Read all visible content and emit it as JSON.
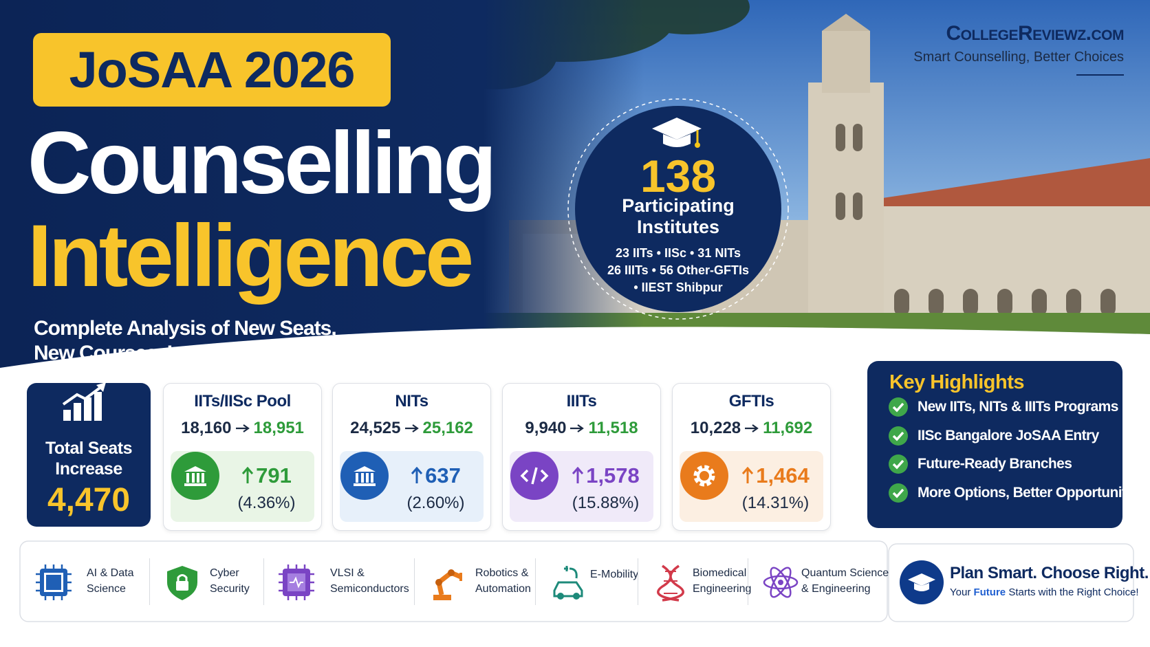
{
  "header": {
    "badge": "JoSAA 2026",
    "title_line1": "Counselling",
    "title_line2": "Intelligence",
    "subtitle_line1": "Complete Analysis of New Seats,",
    "subtitle_line2": "New Courses, Institutes & Strategy"
  },
  "brand": {
    "name": "CollegeReviewz.com",
    "tagline": "Smart Counselling, Better Choices"
  },
  "institutes": {
    "count": "138",
    "label_line1": "Participating",
    "label_line2": "Institutes",
    "breakdown": [
      "23 IITs • IISc • 31 NITs",
      "26 IIITs • 56 Other-GFTIs",
      "• IIEST Shibpur"
    ]
  },
  "total": {
    "label_line1": "Total Seats",
    "label_line2": "Increase",
    "value": "4,470"
  },
  "pools": [
    {
      "name": "IITs/IISc Pool",
      "from": "18,160",
      "to": "18,951",
      "increase": "791",
      "percent": "(4.36%)"
    },
    {
      "name": "NITs",
      "from": "24,525",
      "to": "25,162",
      "increase": "637",
      "percent": "(2.60%)"
    },
    {
      "name": "IIITs",
      "from": "9,940",
      "to": "11,518",
      "increase": "1,578",
      "percent": "(15.88%)"
    },
    {
      "name": "GFTIs",
      "from": "10,228",
      "to": "11,692",
      "increase": "1,464",
      "percent": "(14.31%)"
    }
  ],
  "highlights": {
    "title": "Key Highlights",
    "items": [
      "New IITs, NITs & IIITs Programs",
      "IISc Bangalore JoSAA Entry",
      "Future-Ready Branches",
      "More Options, Better Opportunities"
    ]
  },
  "courses": [
    {
      "lines": [
        "AI & Data",
        "Science"
      ]
    },
    {
      "lines": [
        "Cyber",
        "Security"
      ]
    },
    {
      "lines": [
        "VLSI &",
        "Semiconductors"
      ]
    },
    {
      "lines": [
        "Robotics &",
        "Automation"
      ]
    },
    {
      "lines": [
        "E-Mobility"
      ]
    },
    {
      "lines": [
        "Biomedical",
        "Engineering"
      ]
    },
    {
      "lines": [
        "Quantum Science",
        "& Engineering"
      ]
    }
  ],
  "cta": {
    "title": "Plan Smart. Choose Right.",
    "tagline": [
      "Your",
      "Future",
      "Starts with the Right Choice!"
    ]
  }
}
